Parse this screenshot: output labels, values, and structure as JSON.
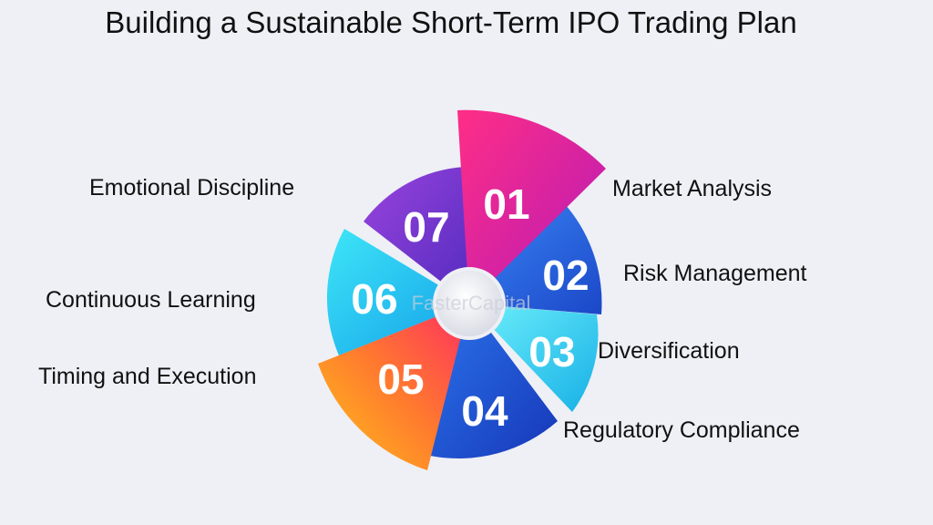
{
  "title": "Building a Sustainable Short-Term IPO Trading Plan",
  "watermark": "FasterCapital",
  "segments": [
    {
      "number": "01",
      "label": "Market Analysis",
      "color_start": "#f0287f",
      "color_end": "#c01bb0"
    },
    {
      "number": "02",
      "label": "Risk Management",
      "color_start": "#2f7df2",
      "color_end": "#1c4fd0"
    },
    {
      "number": "03",
      "label": "Diversification",
      "color_start": "#56e3f7",
      "color_end": "#18b8e8"
    },
    {
      "number": "04",
      "label": "Regulatory Compliance",
      "color_start": "#2a6fe8",
      "color_end": "#1a43c4"
    },
    {
      "number": "05",
      "label": "Timing and Execution",
      "color_start": "#ffb21e",
      "color_end": "#ff3d5a"
    },
    {
      "number": "06",
      "label": "Continuous Learning",
      "color_start": "#2ee0f5",
      "color_end": "#17a9ef"
    },
    {
      "number": "07",
      "label": "Emotional Discipline",
      "color_start": "#8a3bd6",
      "color_end": "#5b2fc4"
    }
  ]
}
